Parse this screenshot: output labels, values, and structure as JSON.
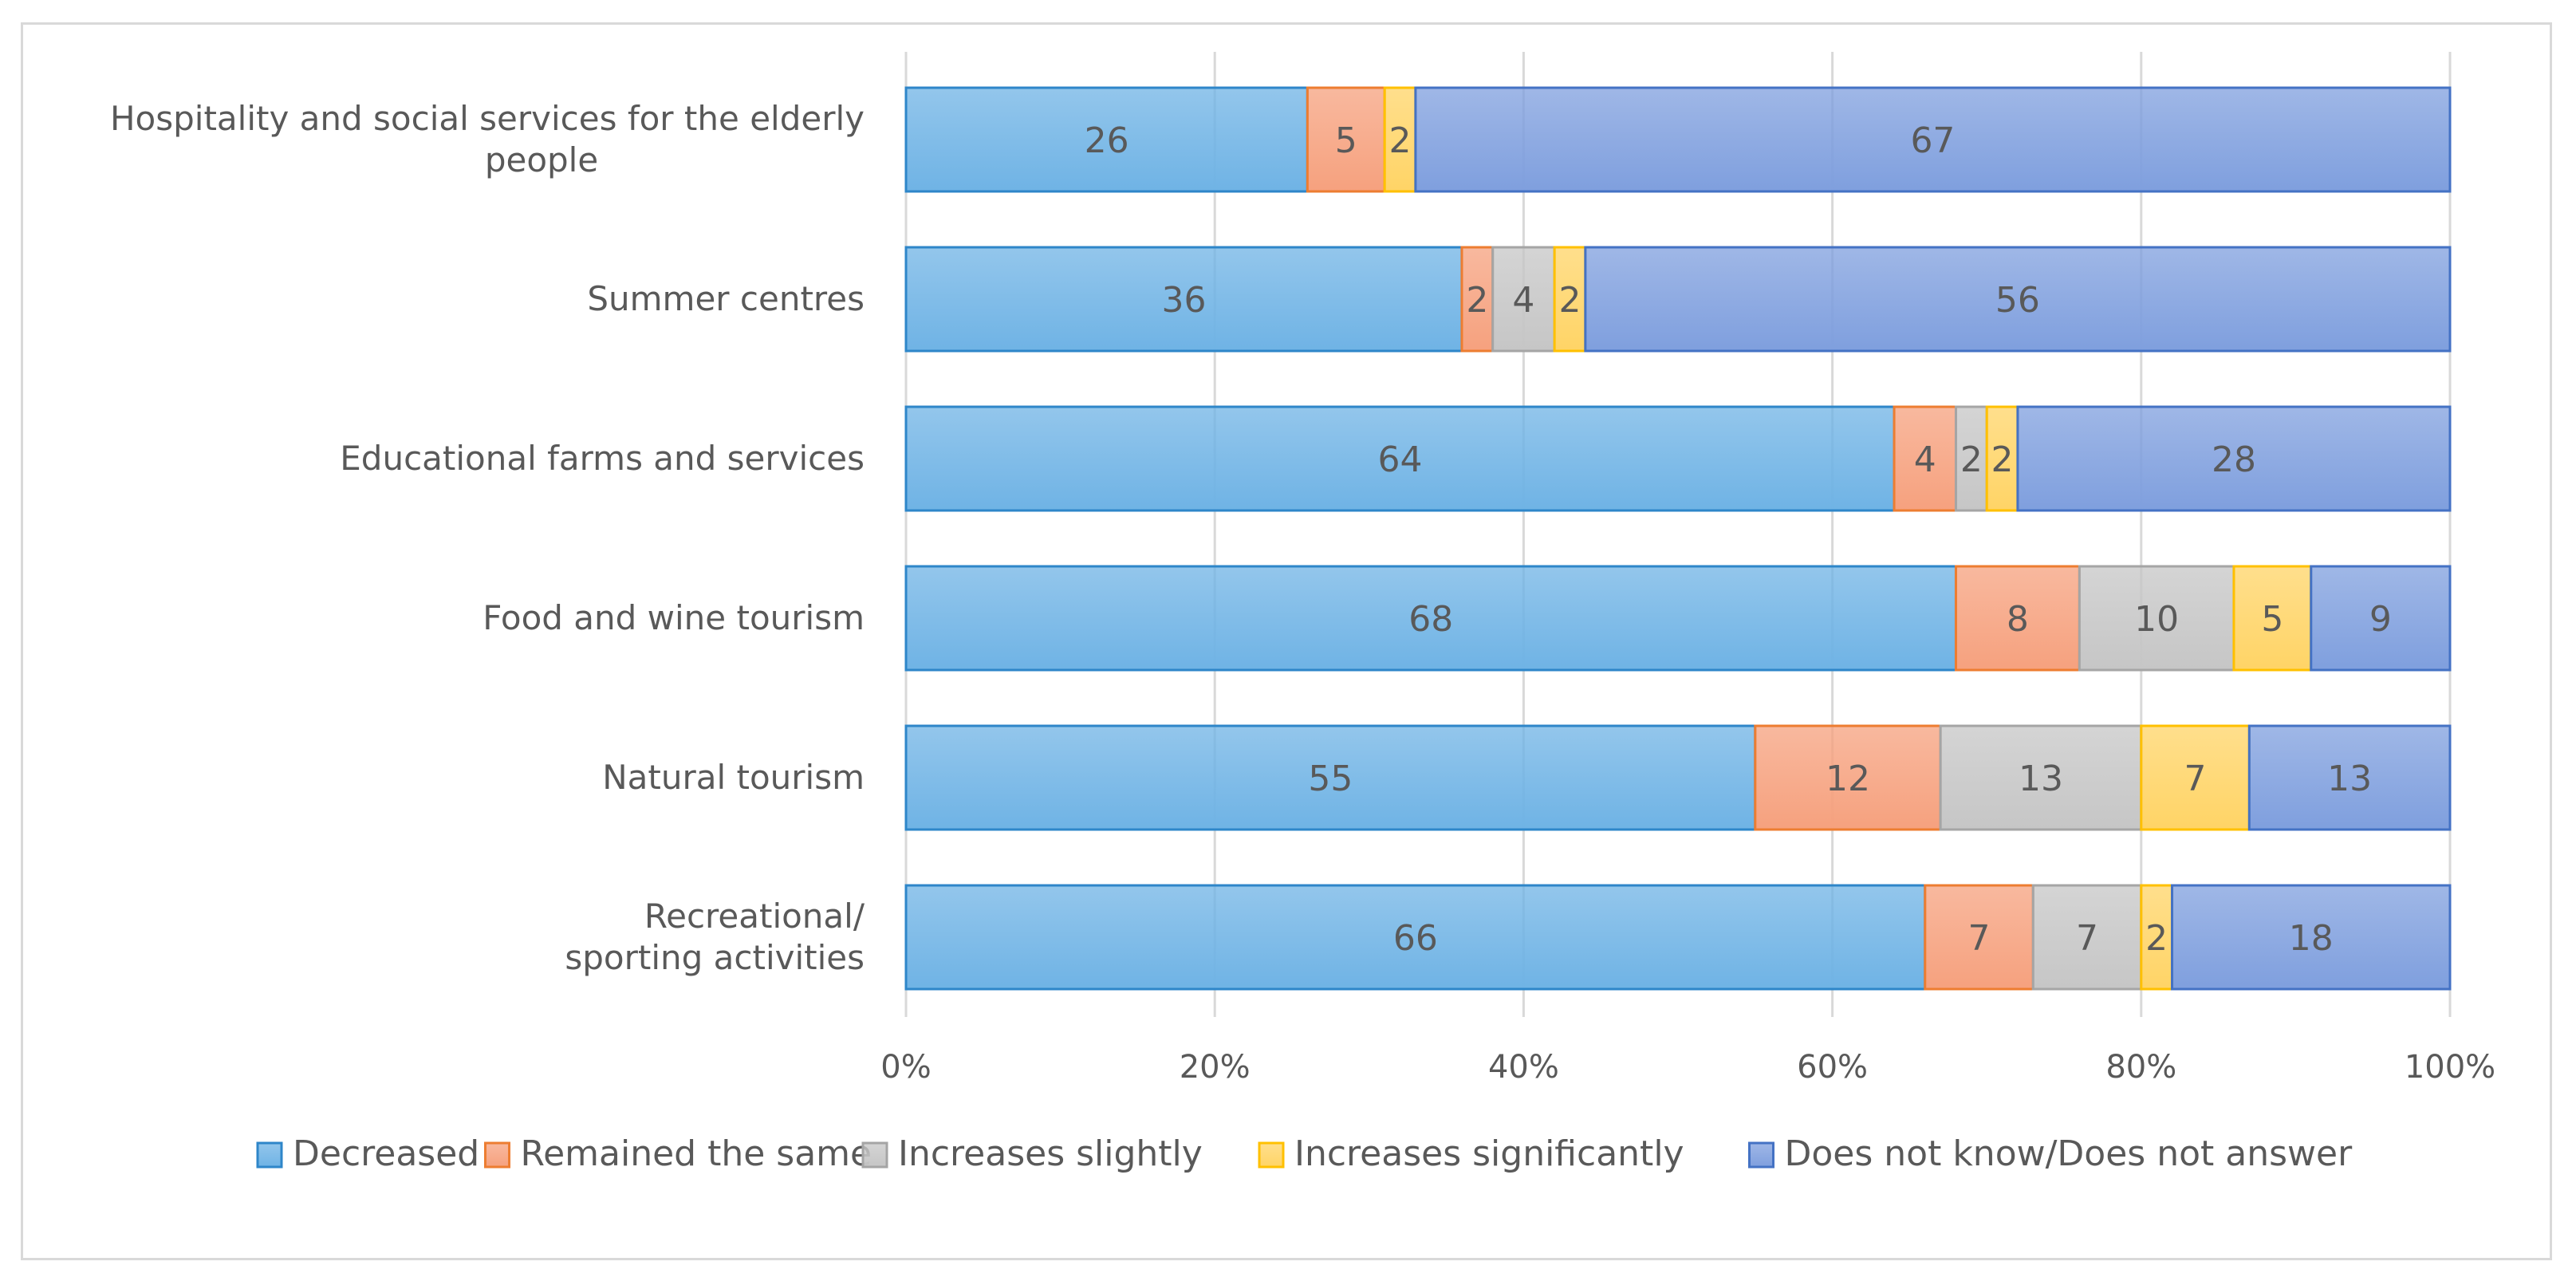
{
  "chart_data": {
    "type": "bar",
    "orientation": "horizontal",
    "stacked": "percent",
    "categories": [
      [
        "Hospitality and social services for the elderly",
        "people"
      ],
      [
        "Summer centres"
      ],
      [
        "Educational farms and services"
      ],
      [
        "Food and wine tourism"
      ],
      [
        "Natural tourism"
      ],
      [
        "Recreational/",
        "sporting activities"
      ]
    ],
    "series": [
      {
        "name": "Decreased",
        "color": "#6fb3e5",
        "values": [
          26,
          36,
          64,
          68,
          55,
          66
        ]
      },
      {
        "name": "Remained the same",
        "color": "#f6a17e",
        "values": [
          5,
          2,
          4,
          8,
          12,
          7
        ]
      },
      {
        "name": "Increases slightly",
        "color": "#c6c6c6",
        "values": [
          0,
          4,
          2,
          10,
          13,
          7
        ]
      },
      {
        "name": "Increases significantly",
        "color": "#ffd466",
        "values": [
          2,
          2,
          2,
          5,
          7,
          2
        ]
      },
      {
        "name": "Does not know/Does not answer",
        "color": "#7f9fde",
        "values": [
          67,
          56,
          28,
          9,
          13,
          18
        ]
      }
    ],
    "border_colors": [
      "#2e86c9",
      "#ed7d31",
      "#a5a5a5",
      "#ffc000",
      "#4472c4"
    ],
    "x_ticks": [
      "0%",
      "20%",
      "40%",
      "60%",
      "80%",
      "100%"
    ],
    "xlim": [
      0,
      100
    ],
    "grid": true,
    "legend_position": "bottom",
    "title": "",
    "xlabel": "",
    "ylabel": ""
  }
}
